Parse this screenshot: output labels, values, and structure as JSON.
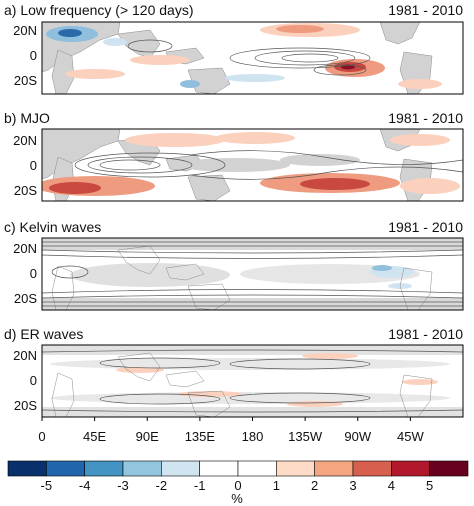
{
  "chart_data": [
    {
      "type": "heatmap",
      "panel_label": "a) Low frequency (> 120 days)",
      "period": "1981 - 2010",
      "ylabels": [
        "20N",
        "0",
        "20S"
      ],
      "grid": false
    },
    {
      "type": "heatmap",
      "panel_label": "b) MJO",
      "period": "1981 - 2010",
      "ylabels": [
        "20N",
        "0",
        "20S"
      ],
      "grid": false
    },
    {
      "type": "heatmap",
      "panel_label": "c) Kelvin waves",
      "period": "1981 - 2010",
      "ylabels": [
        "20N",
        "0",
        "20S"
      ],
      "grid": false
    },
    {
      "type": "heatmap",
      "panel_label": "d) ER waves",
      "period": "1981 - 2010",
      "ylabels": [
        "20N",
        "0",
        "20S"
      ],
      "grid": false
    }
  ],
  "x_axis": {
    "ticks": [
      "0",
      "45E",
      "90E",
      "135E",
      "180",
      "135W",
      "90W",
      "45W"
    ]
  },
  "colorbar": {
    "label": "%",
    "ticks": [
      "-5",
      "-4",
      "-3",
      "-2",
      "-1",
      "0",
      "1",
      "2",
      "3",
      "4",
      "5"
    ],
    "colors": [
      "#08306b",
      "#2166ac",
      "#4393c3",
      "#92c5de",
      "#d1e5f0",
      "#ffffff",
      "#ffffff",
      "#fddbc7",
      "#f4a582",
      "#d6604d",
      "#b2182b",
      "#67001f"
    ]
  },
  "colors": {
    "land": "#cfcfcf",
    "contour": "#555555",
    "pos_light": "#fbd0bd",
    "pos_mid": "#ee9b80",
    "pos_strong": "#c94840",
    "pos_max": "#8a0f22",
    "neg_light": "#cfe3f1",
    "neg_mid": "#8fbfdc",
    "neg_strong": "#2b6aa8"
  }
}
